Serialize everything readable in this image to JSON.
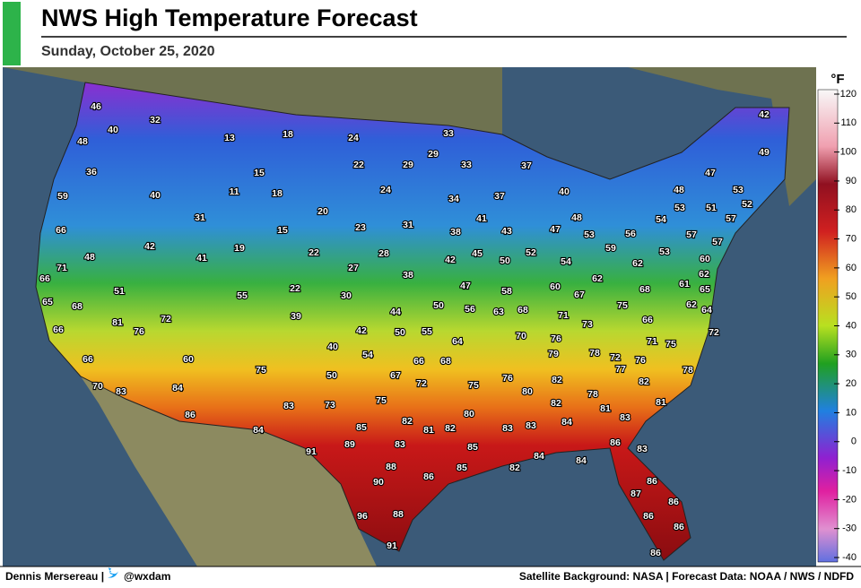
{
  "header": {
    "title": "NWS High Temperature Forecast",
    "subtitle": "Sunday, October 25, 2020"
  },
  "legend": {
    "unit": "°F",
    "ticks": [
      120,
      110,
      100,
      90,
      80,
      70,
      60,
      50,
      40,
      30,
      20,
      10,
      0,
      -10,
      -20,
      -30,
      -40
    ]
  },
  "map": {
    "labels": [
      46,
      32,
      40,
      48,
      13,
      18,
      24,
      33,
      22,
      29,
      29,
      33,
      37,
      36,
      15,
      11,
      18,
      40,
      24,
      34,
      37,
      40,
      42,
      49,
      47,
      48,
      53,
      53,
      51,
      52,
      54,
      57,
      59,
      31,
      20,
      23,
      31,
      41,
      48,
      47,
      53,
      38,
      43,
      56,
      57,
      57,
      66,
      42,
      19,
      15,
      22,
      28,
      42,
      45,
      50,
      52,
      59,
      53,
      48,
      41,
      27,
      54,
      62,
      60,
      71,
      66,
      38,
      62,
      62,
      61,
      65,
      68,
      51,
      55,
      22,
      30,
      47,
      58,
      60,
      67,
      62,
      64,
      65,
      68,
      50,
      56,
      63,
      68,
      71,
      73,
      75,
      44,
      39,
      81,
      72,
      66,
      72,
      66,
      76,
      42,
      50,
      55,
      64,
      70,
      76,
      71,
      75,
      40,
      54,
      79,
      78,
      72,
      76,
      66,
      60,
      75,
      66,
      68,
      77,
      78,
      50,
      67,
      72,
      75,
      76,
      82,
      82,
      70,
      83,
      84,
      80,
      78,
      81,
      83,
      73,
      75,
      82,
      81,
      83,
      86,
      80,
      85,
      82,
      81,
      82,
      83,
      83,
      84,
      84,
      89,
      83,
      85,
      86,
      83,
      91,
      84,
      84,
      82,
      88,
      85,
      86,
      90,
      86,
      87,
      86,
      88,
      96,
      86,
      86,
      91,
      86
    ]
  },
  "footer": {
    "credit": "Dennis Mersereau |",
    "handle": "@wxdam",
    "sources": "Satellite Background: NASA | Forecast Data: NOAA / NWS / NDFD"
  }
}
